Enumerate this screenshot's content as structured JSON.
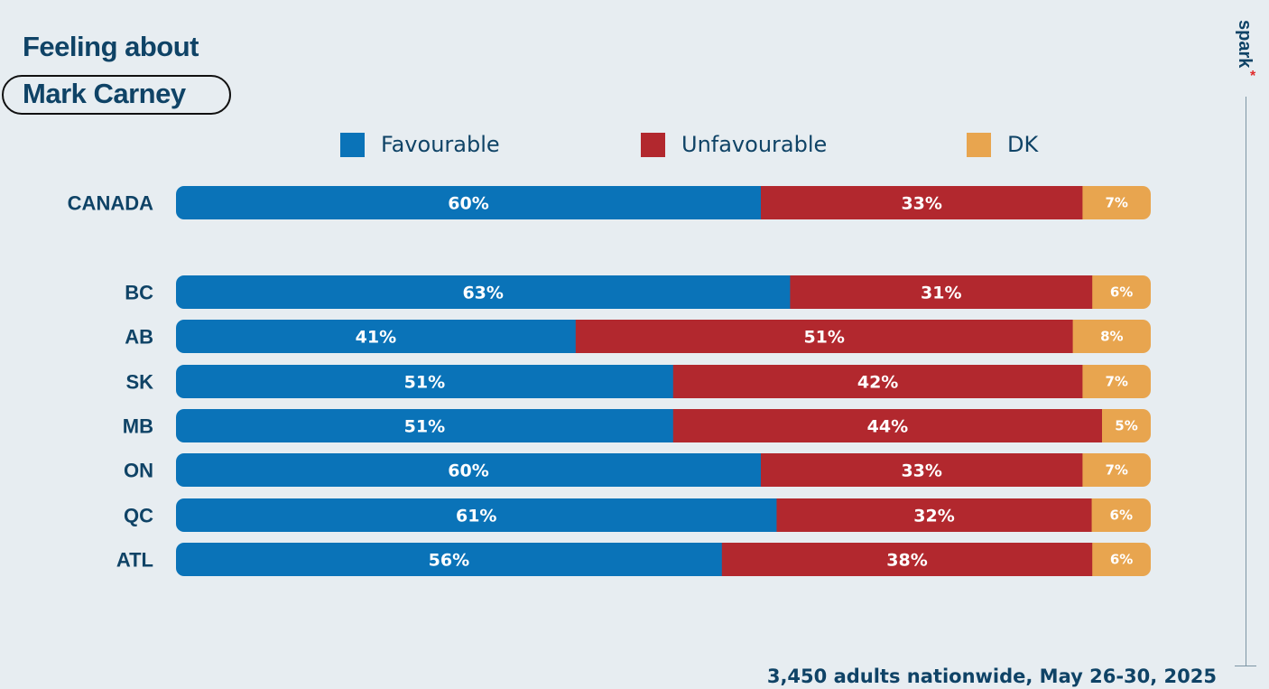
{
  "title": {
    "line1": "Feeling about",
    "line2": "Mark Carney"
  },
  "brand": {
    "name": "spark",
    "mark": "*",
    "mark_color": "#e02a2a"
  },
  "footnote": "3,450 adults nationwide, May 26-30, 2025",
  "colors": {
    "favourable": "#0a73b8",
    "unfavourable": "#b2282e",
    "dk": "#e8a54f",
    "text_dark": "#0f4366"
  },
  "chart_data": {
    "type": "bar",
    "orientation": "horizontal",
    "stacked": true,
    "title": "Feeling about Mark Carney",
    "legend": [
      "Favourable",
      "Unfavourable",
      "DK"
    ],
    "legend_position": "top",
    "categories": [
      "CANADA",
      "BC",
      "AB",
      "SK",
      "MB",
      "ON",
      "QC",
      "ATL"
    ],
    "series": [
      {
        "name": "Favourable",
        "values": [
          60,
          63,
          41,
          51,
          51,
          60,
          61,
          56
        ],
        "labels": [
          "60%",
          "63%",
          "41%",
          "51%",
          "51%",
          "60%",
          "61%",
          "56%"
        ]
      },
      {
        "name": "Unfavourable",
        "values": [
          33,
          31,
          51,
          42,
          44,
          33,
          32,
          38
        ],
        "labels": [
          "33%",
          "31%",
          "51%",
          "42%",
          "44%",
          "33%",
          "32%",
          "38%"
        ]
      },
      {
        "name": "DK",
        "values": [
          7,
          6,
          8,
          7,
          5,
          7,
          6,
          6
        ],
        "labels": [
          "7%",
          "6%",
          "8%",
          "7%",
          "5%",
          "7%",
          "6%",
          "6%"
        ]
      }
    ],
    "xlim": [
      0,
      100
    ],
    "grid": false
  }
}
